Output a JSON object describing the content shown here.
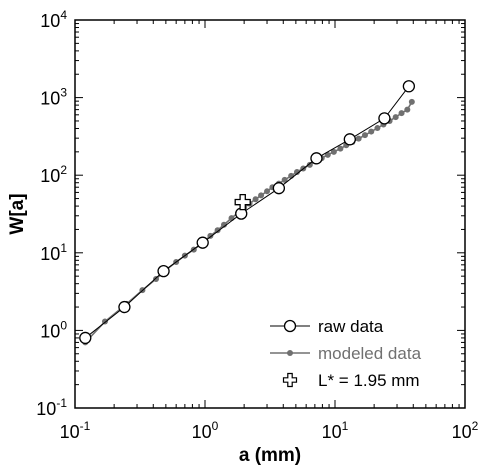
{
  "chart_data": {
    "type": "line",
    "xscale": "log",
    "yscale": "log",
    "xlim": [
      0.1,
      100
    ],
    "ylim": [
      0.1,
      10000
    ],
    "xlabel": "a (mm)",
    "ylabel": "W[a]",
    "x_ticks": [
      {
        "base": "10",
        "exp": "-1",
        "value": 0.1
      },
      {
        "base": "10",
        "exp": "0",
        "value": 1
      },
      {
        "base": "10",
        "exp": "1",
        "value": 10
      },
      {
        "base": "10",
        "exp": "2",
        "value": 100
      }
    ],
    "y_ticks": [
      {
        "base": "10",
        "exp": "-1",
        "value": 0.1
      },
      {
        "base": "10",
        "exp": "0",
        "value": 1
      },
      {
        "base": "10",
        "exp": "1",
        "value": 10
      },
      {
        "base": "10",
        "exp": "2",
        "value": 100
      },
      {
        "base": "10",
        "exp": "3",
        "value": 1000
      },
      {
        "base": "10",
        "exp": "4",
        "value": 10000
      }
    ],
    "grid": false,
    "legend_position": "bottom-right",
    "series": [
      {
        "name": "raw data",
        "color": "#000000",
        "marker": "open-circle",
        "points": [
          {
            "x": 0.12,
            "y": 0.8
          },
          {
            "x": 0.24,
            "y": 2.0
          },
          {
            "x": 0.48,
            "y": 5.8
          },
          {
            "x": 0.96,
            "y": 13.5
          },
          {
            "x": 1.9,
            "y": 32
          },
          {
            "x": 3.7,
            "y": 68
          },
          {
            "x": 7.2,
            "y": 165
          },
          {
            "x": 13,
            "y": 290
          },
          {
            "x": 24,
            "y": 540
          },
          {
            "x": 37,
            "y": 1400
          }
        ]
      },
      {
        "name": "modeled data",
        "color": "#707070",
        "marker": "filled-dot",
        "points": [
          {
            "x": 0.12,
            "y": 0.7
          },
          {
            "x": 0.17,
            "y": 1.3
          },
          {
            "x": 0.25,
            "y": 2.2
          },
          {
            "x": 0.33,
            "y": 3.3
          },
          {
            "x": 0.42,
            "y": 4.6
          },
          {
            "x": 0.5,
            "y": 6.0
          },
          {
            "x": 0.6,
            "y": 7.6
          },
          {
            "x": 0.7,
            "y": 9.2
          },
          {
            "x": 0.82,
            "y": 11.0
          },
          {
            "x": 0.95,
            "y": 13.2
          },
          {
            "x": 1.1,
            "y": 16.5
          },
          {
            "x": 1.25,
            "y": 19.5
          },
          {
            "x": 1.4,
            "y": 23
          },
          {
            "x": 1.6,
            "y": 28
          },
          {
            "x": 1.8,
            "y": 33
          },
          {
            "x": 2.0,
            "y": 38
          },
          {
            "x": 2.2,
            "y": 43
          },
          {
            "x": 2.45,
            "y": 49
          },
          {
            "x": 2.7,
            "y": 55
          },
          {
            "x": 3.0,
            "y": 62
          },
          {
            "x": 3.3,
            "y": 70
          },
          {
            "x": 3.7,
            "y": 78
          },
          {
            "x": 4.1,
            "y": 87
          },
          {
            "x": 4.6,
            "y": 98
          },
          {
            "x": 5.1,
            "y": 110
          },
          {
            "x": 5.7,
            "y": 122
          },
          {
            "x": 6.4,
            "y": 136
          },
          {
            "x": 7.1,
            "y": 150
          },
          {
            "x": 7.9,
            "y": 166
          },
          {
            "x": 8.8,
            "y": 183
          },
          {
            "x": 9.8,
            "y": 200
          },
          {
            "x": 11,
            "y": 220
          },
          {
            "x": 12.2,
            "y": 243
          },
          {
            "x": 13.6,
            "y": 268
          },
          {
            "x": 15.2,
            "y": 296
          },
          {
            "x": 17,
            "y": 328
          },
          {
            "x": 19,
            "y": 365
          },
          {
            "x": 21.2,
            "y": 405
          },
          {
            "x": 23.6,
            "y": 450
          },
          {
            "x": 26.3,
            "y": 500
          },
          {
            "x": 29.3,
            "y": 560
          },
          {
            "x": 32.5,
            "y": 630
          },
          {
            "x": 36,
            "y": 700
          },
          {
            "x": 39,
            "y": 880
          }
        ]
      },
      {
        "name": "L* = 1.95 mm",
        "color": "#000000",
        "marker": "open-cross",
        "points": [
          {
            "x": 1.95,
            "y": 45
          }
        ]
      }
    ]
  }
}
